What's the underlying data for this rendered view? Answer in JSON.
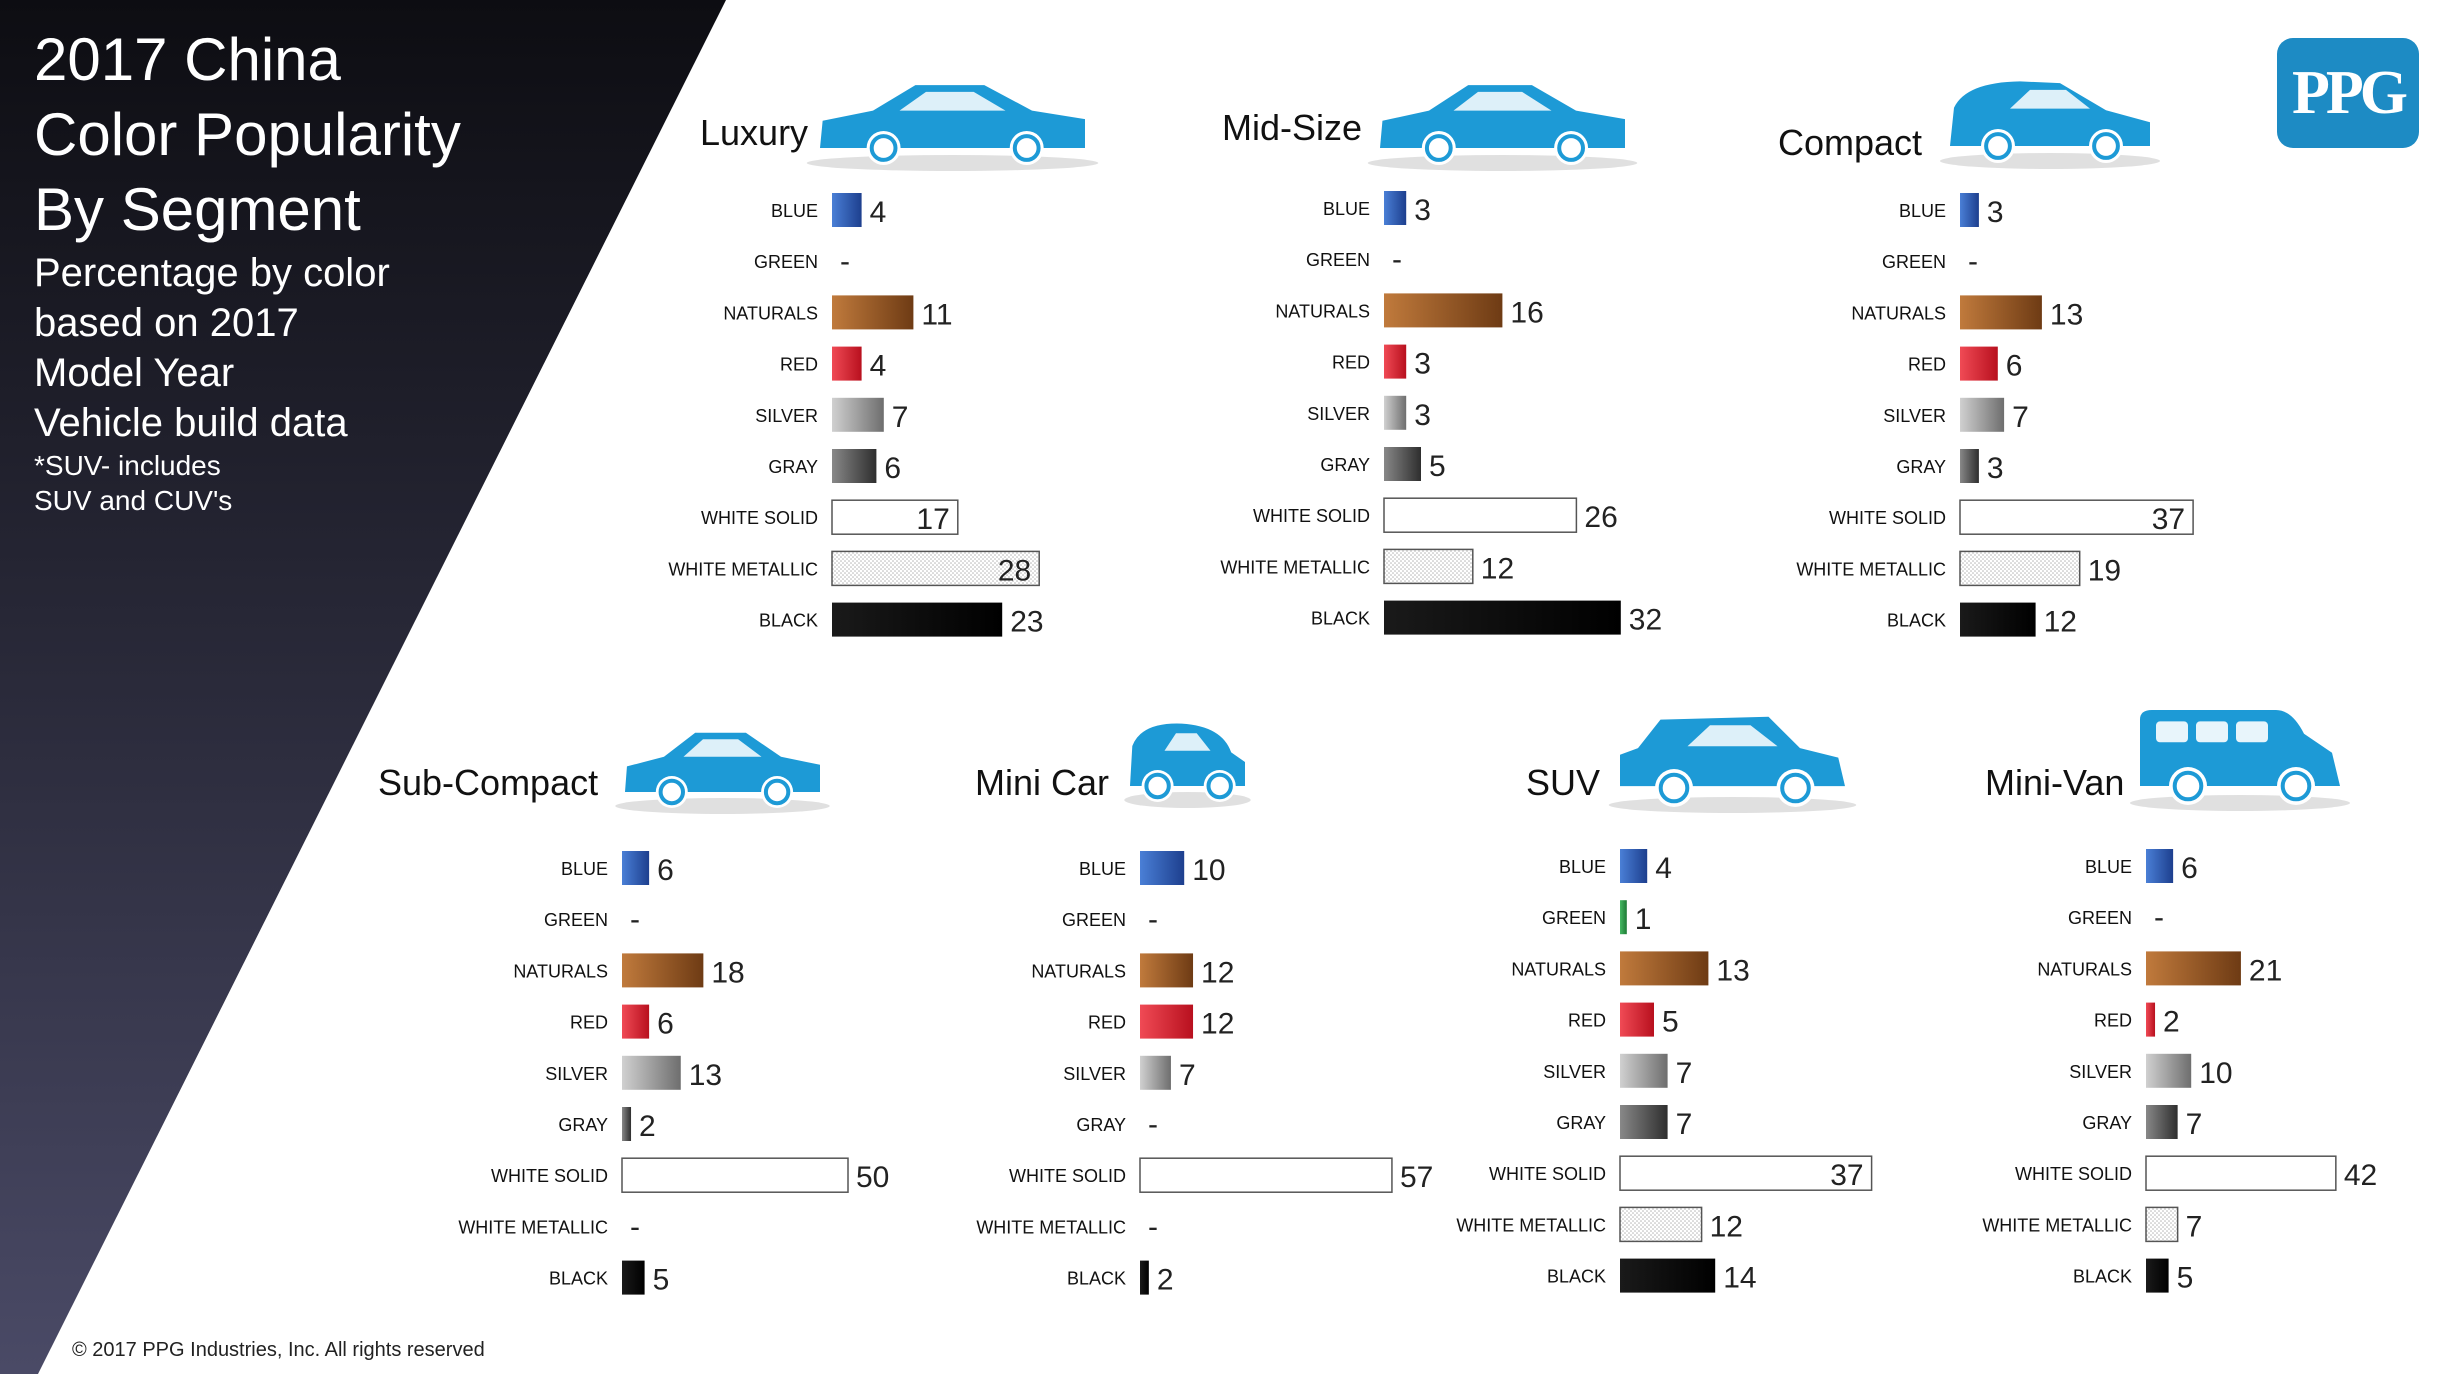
{
  "header": {
    "title_lines": [
      "2017 China",
      "Color Popularity",
      "By Segment"
    ],
    "subtitle_lines": [
      "Percentage by color",
      "based on 2017",
      "Model Year",
      "Vehicle build data"
    ],
    "note_lines": [
      "*SUV- includes",
      "SUV and CUV's"
    ]
  },
  "footer": {
    "copyright": "© 2017 PPG Industries, Inc. All rights reserved"
  },
  "logo": {
    "text": "PPG"
  },
  "colors": {
    "BLUE": "#2a5bb8",
    "GREEN": "#2f9e4a",
    "NATURALS": "#9c5a26",
    "RED": "#e01e2e",
    "SILVER": "#9a9a9a",
    "GRAY": "#555555",
    "WHITE SOLID": "#ffffff",
    "WHITE METALLIC": "#eeeeee",
    "BLACK": "#0a0a0a",
    "car": "#1d9ad6"
  },
  "chart_data": [
    {
      "type": "bar",
      "title": "Luxury",
      "icon": "sedan-icon",
      "categories": [
        "BLUE",
        "GREEN",
        "NATURALS",
        "RED",
        "SILVER",
        "GRAY",
        "WHITE SOLID",
        "WHITE METALLIC",
        "BLACK"
      ],
      "values": [
        4,
        null,
        11,
        4,
        7,
        6,
        17,
        28,
        23
      ]
    },
    {
      "type": "bar",
      "title": "Mid-Size",
      "icon": "sedan-icon",
      "categories": [
        "BLUE",
        "GREEN",
        "NATURALS",
        "RED",
        "SILVER",
        "GRAY",
        "WHITE SOLID",
        "WHITE METALLIC",
        "BLACK"
      ],
      "values": [
        3,
        null,
        16,
        3,
        3,
        5,
        26,
        12,
        32
      ]
    },
    {
      "type": "bar",
      "title": "Compact",
      "icon": "hatchback-icon",
      "categories": [
        "BLUE",
        "GREEN",
        "NATURALS",
        "RED",
        "SILVER",
        "GRAY",
        "WHITE SOLID",
        "WHITE METALLIC",
        "BLACK"
      ],
      "values": [
        3,
        null,
        13,
        6,
        7,
        3,
        37,
        19,
        12
      ]
    },
    {
      "type": "bar",
      "title": "Sub-Compact",
      "icon": "sedan-icon",
      "categories": [
        "BLUE",
        "GREEN",
        "NATURALS",
        "RED",
        "SILVER",
        "GRAY",
        "WHITE SOLID",
        "WHITE METALLIC",
        "BLACK"
      ],
      "values": [
        6,
        null,
        18,
        6,
        13,
        2,
        50,
        null,
        5
      ]
    },
    {
      "type": "bar",
      "title": "Mini Car",
      "icon": "mini-car-icon",
      "categories": [
        "BLUE",
        "GREEN",
        "NATURALS",
        "RED",
        "SILVER",
        "GRAY",
        "WHITE SOLID",
        "WHITE METALLIC",
        "BLACK"
      ],
      "values": [
        10,
        null,
        12,
        12,
        7,
        null,
        57,
        null,
        2
      ]
    },
    {
      "type": "bar",
      "title": "SUV",
      "icon": "suv-icon",
      "categories": [
        "BLUE",
        "GREEN",
        "NATURALS",
        "RED",
        "SILVER",
        "GRAY",
        "WHITE SOLID",
        "WHITE METALLIC",
        "BLACK"
      ],
      "values": [
        4,
        1,
        13,
        5,
        7,
        7,
        37,
        12,
        14
      ]
    },
    {
      "type": "bar",
      "title": "Mini-Van",
      "icon": "minivan-icon",
      "categories": [
        "BLUE",
        "GREEN",
        "NATURALS",
        "RED",
        "SILVER",
        "GRAY",
        "WHITE SOLID",
        "WHITE METALLIC",
        "BLACK"
      ],
      "values": [
        6,
        null,
        21,
        2,
        10,
        7,
        42,
        7,
        5
      ]
    }
  ]
}
